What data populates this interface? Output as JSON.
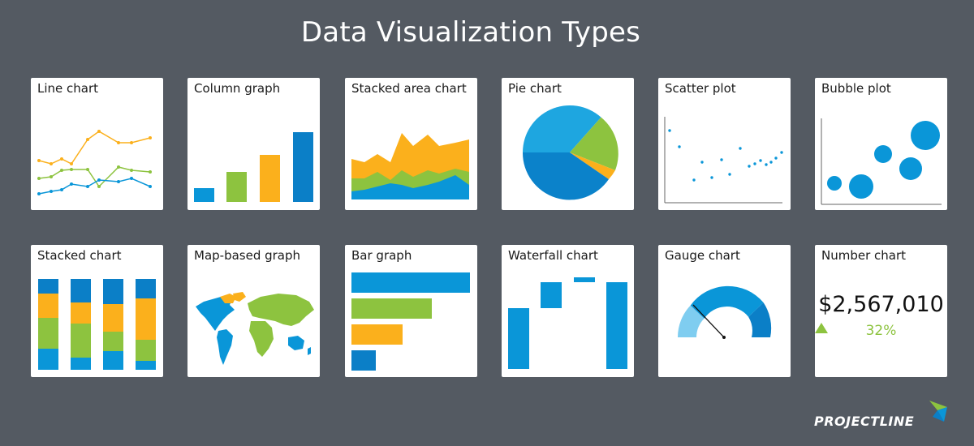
{
  "title": "Data Visualization Types",
  "brand": "PROJECTLINE",
  "colors": {
    "background": "#545a62",
    "blue": "#0a96d8",
    "dark_blue": "#0b7fc7",
    "green": "#8dc33f",
    "orange": "#fbb01c",
    "light_blue": "#7fcdf0"
  },
  "charts": [
    {
      "key": "line",
      "label": "Line chart"
    },
    {
      "key": "column",
      "label": "Column graph"
    },
    {
      "key": "stacked_area",
      "label": "Stacked area chart"
    },
    {
      "key": "pie",
      "label": "Pie chart"
    },
    {
      "key": "scatter",
      "label": "Scatter plot"
    },
    {
      "key": "bubble",
      "label": "Bubble plot"
    },
    {
      "key": "stacked",
      "label": "Stacked chart"
    },
    {
      "key": "map",
      "label": "Map-based graph"
    },
    {
      "key": "bar",
      "label": "Bar graph"
    },
    {
      "key": "waterfall",
      "label": "Waterfall chart"
    },
    {
      "key": "gauge",
      "label": "Gauge chart"
    },
    {
      "key": "number",
      "label": "Number chart"
    }
  ],
  "number_chart": {
    "value": "$2,567,010",
    "change": "32%",
    "change_icon": "triangle-up-icon"
  }
}
